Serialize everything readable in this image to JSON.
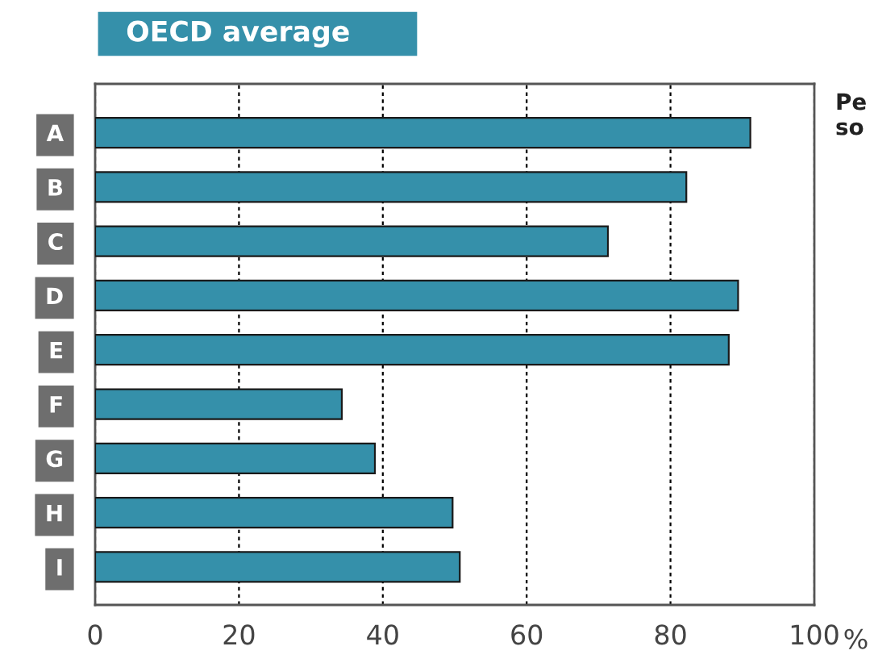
{
  "chart_data": {
    "type": "bar",
    "orientation": "horizontal",
    "title": "OECD average",
    "xlabel": "%",
    "categories": [
      "A",
      "B",
      "C",
      "D",
      "E",
      "F",
      "G",
      "H",
      "I"
    ],
    "values": [
      91.1,
      82.2,
      71.3,
      89.4,
      88.1,
      34.3,
      38.9,
      49.7,
      50.7
    ],
    "color": "#3590aa",
    "xlim": [
      0,
      100
    ],
    "xticks": [
      0,
      20,
      40,
      60,
      80,
      100
    ],
    "grid": "x",
    "annotations": [
      "Pe\nso"
    ]
  }
}
